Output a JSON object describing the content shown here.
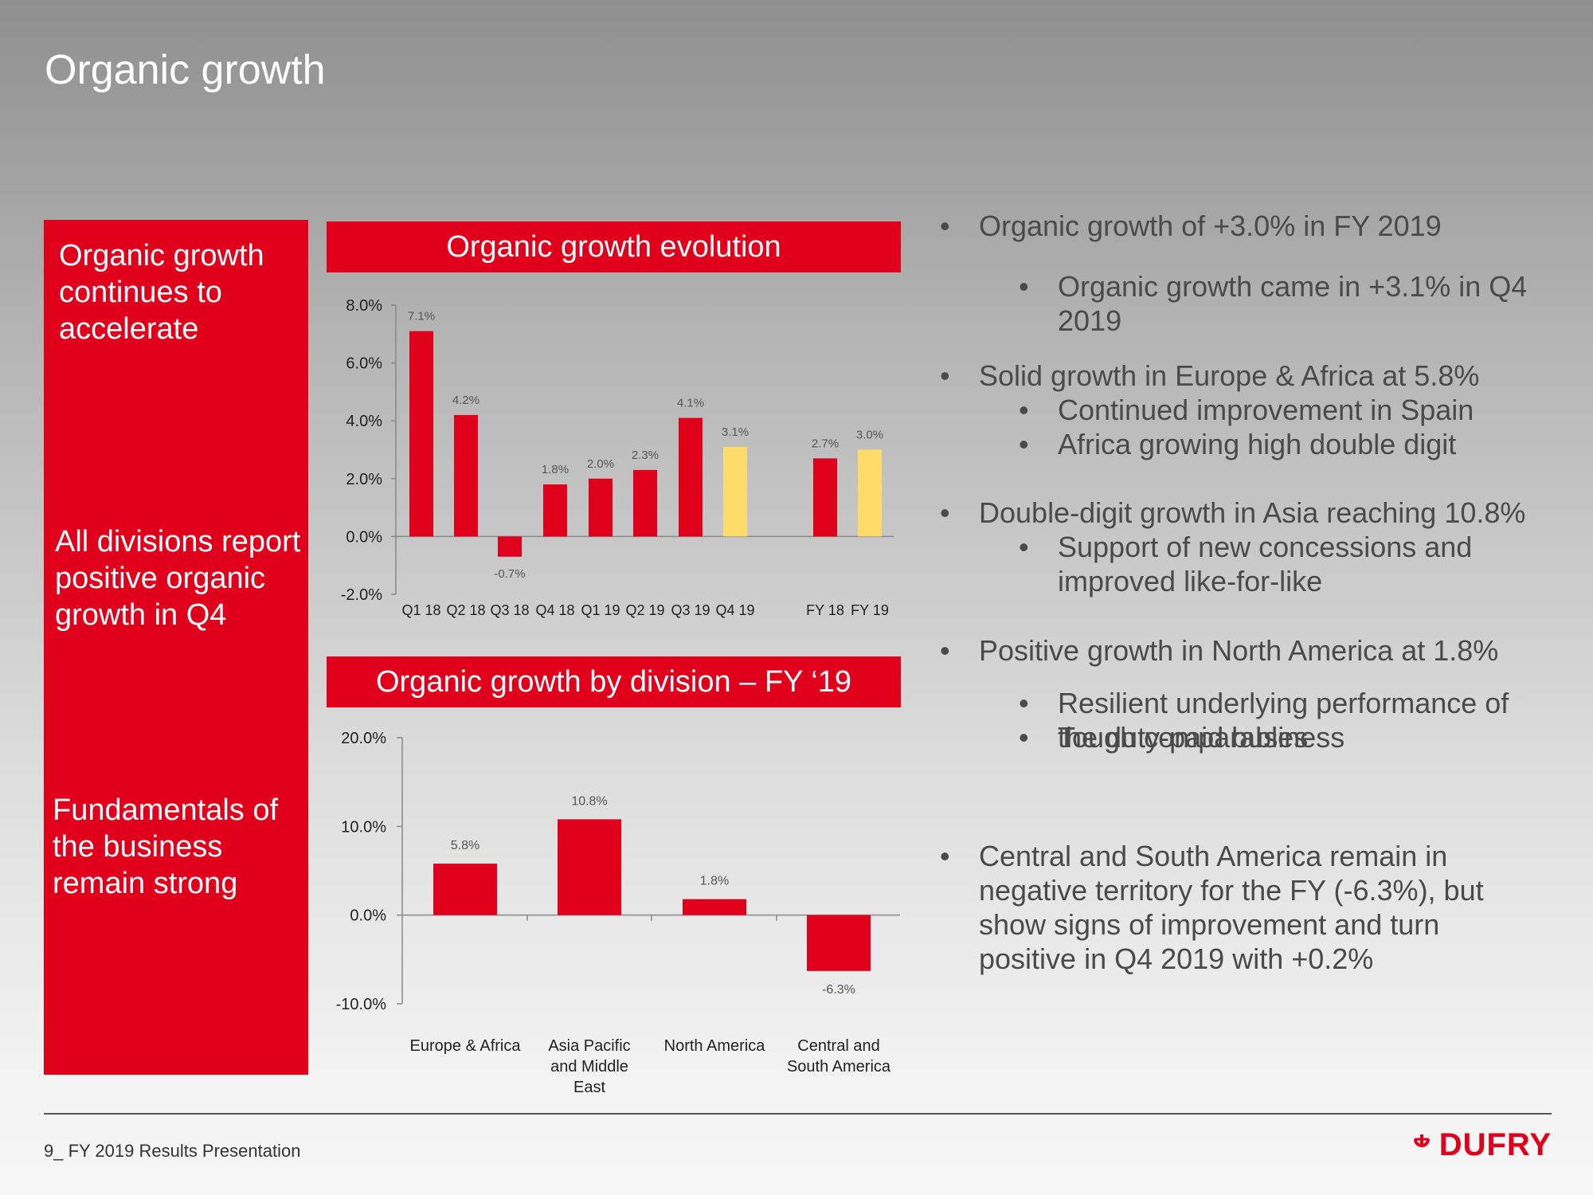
{
  "page": {
    "title": "Organic growth"
  },
  "left_panel": {
    "items": [
      "Organic growth continues to accelerate",
      "All divisions report positive organic growth in Q4",
      "Fundamentals of the business remain strong"
    ]
  },
  "chart_headers": {
    "evolution": "Organic growth evolution",
    "division": "Organic growth by division – FY ‘19"
  },
  "chart_data": [
    {
      "type": "bar",
      "title": "Organic growth evolution",
      "categories": [
        "Q1 18",
        "Q2 18",
        "Q3 18",
        "Q4 18",
        "Q1 19",
        "Q2 19",
        "Q3 19",
        "Q4 19",
        "FY 18",
        "FY 19"
      ],
      "values": [
        7.1,
        4.2,
        -0.7,
        1.8,
        2.0,
        2.3,
        4.1,
        3.1,
        2.7,
        3.0
      ],
      "labels": [
        "7.1%",
        "4.2%",
        "-0.7%",
        "1.8%",
        "2.0%",
        "2.3%",
        "4.1%",
        "3.1%",
        "2.7%",
        "3.0%"
      ],
      "colors": [
        "#e0001b",
        "#e0001b",
        "#e0001b",
        "#e0001b",
        "#e0001b",
        "#e0001b",
        "#e0001b",
        "#ffdc6a",
        "#e0001b",
        "#ffdc6a"
      ],
      "ylim": [
        -2.0,
        8.0
      ],
      "yticks": [
        "-2.0%",
        "0.0%",
        "2.0%",
        "4.0%",
        "6.0%",
        "8.0%"
      ],
      "ytick_values": [
        -2,
        0,
        2,
        4,
        6,
        8
      ],
      "xlabel": "",
      "ylabel": "",
      "grid": false
    },
    {
      "type": "bar",
      "title": "Organic growth by division – FY ‘19",
      "categories": [
        [
          "Europe & Africa"
        ],
        [
          "Asia Pacific",
          "and Middle",
          "East"
        ],
        [
          "North America"
        ],
        [
          "Central and",
          "South America"
        ]
      ],
      "values": [
        5.8,
        10.8,
        1.8,
        -6.3
      ],
      "labels": [
        "5.8%",
        "10.8%",
        "1.8%",
        "-6.3%"
      ],
      "colors": [
        "#e0001b",
        "#e0001b",
        "#e0001b",
        "#e0001b"
      ],
      "ylim": [
        -10.0,
        20.0
      ],
      "yticks": [
        "-10.0%",
        "0.0%",
        "10.0%",
        "20.0%"
      ],
      "ytick_values": [
        -10,
        0,
        10,
        20
      ],
      "xlabel": "",
      "ylabel": "",
      "grid": false
    }
  ],
  "bullets": [
    {
      "level": 1,
      "text": "Organic growth of +3.0% in FY 2019"
    },
    {
      "level": 2,
      "text": "Organic growth came in +3.1% in Q4 2019"
    },
    {
      "level": 1,
      "text": "Solid growth in Europe & Africa at 5.8%"
    },
    {
      "level": 2,
      "text": "Continued improvement in Spain"
    },
    {
      "level": 2,
      "text": "Africa growing high double digit"
    },
    {
      "level": 1,
      "text": "Double-digit growth in Asia reaching 10.8%"
    },
    {
      "level": 2,
      "text": "Support of new concessions and improved like-for-like"
    },
    {
      "level": 1,
      "text": "Positive growth in North America at 1.8%"
    },
    {
      "level": 2,
      "text": "Resilient underlying performance of the duty-paid business"
    },
    {
      "level": 2,
      "text": "Tough comparables"
    },
    {
      "level": 1,
      "text": "Central and South America remain in negative territory for the FY (-6.3%), but show signs of improvement and turn positive in Q4 2019 with +0.2%"
    }
  ],
  "footer": {
    "text": "9_ FY 2019 Results Presentation",
    "logo": "DUFRY"
  },
  "colors": {
    "accent": "#e0001b",
    "highlight": "#ffdc6a"
  }
}
